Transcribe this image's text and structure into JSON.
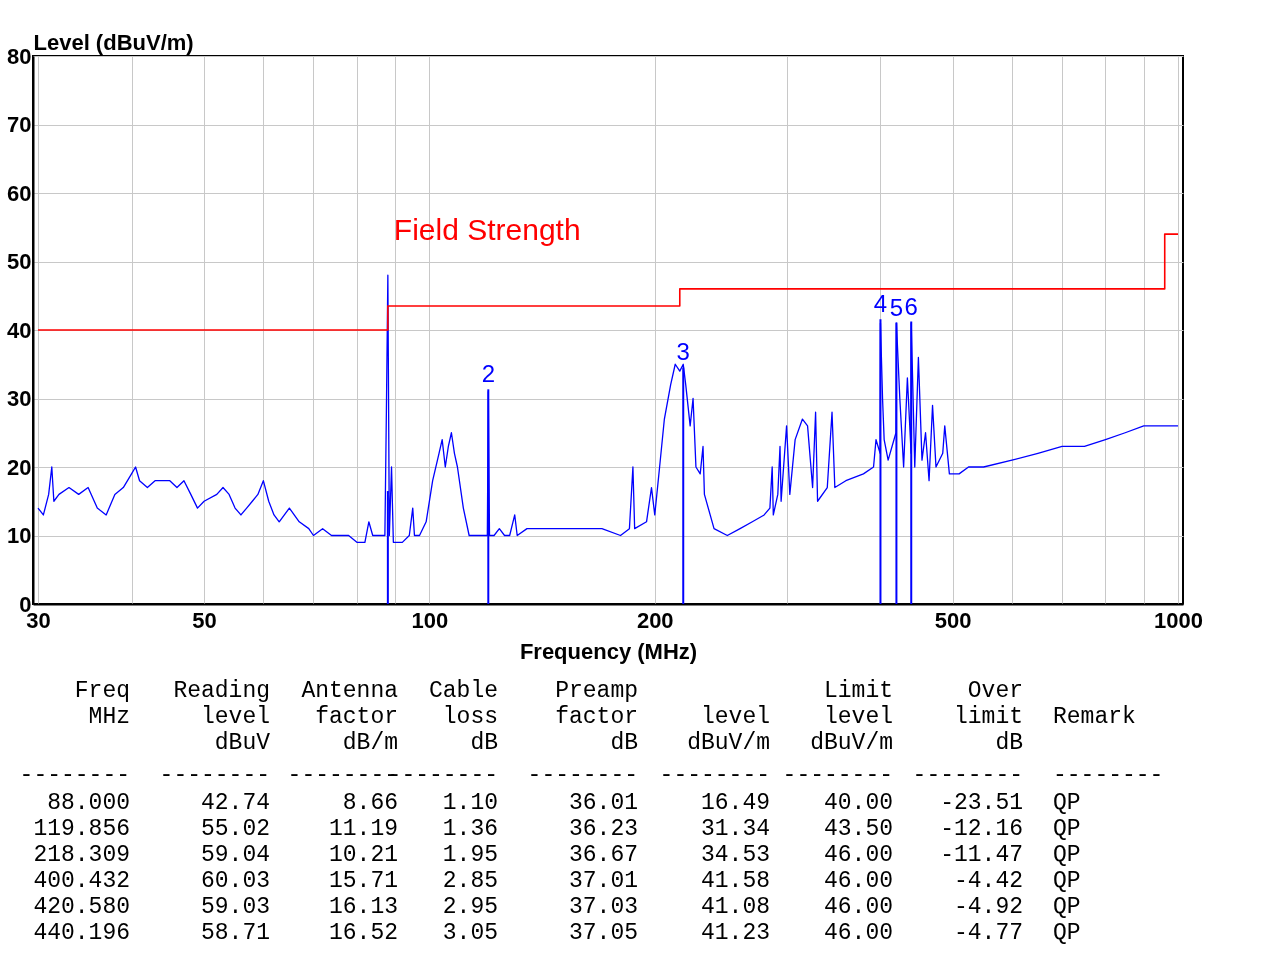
{
  "chart_data": {
    "type": "line",
    "xlabel": "Frequency (MHz)",
    "ylabel": "Level (dBuV/m)",
    "log": "x",
    "grid": true,
    "legend": false,
    "xlim": [
      30,
      1000
    ],
    "xticks": [
      30,
      {
        "value": 40,
        "label": null
      },
      50,
      {
        "value": 60,
        "label": null
      },
      {
        "value": 70,
        "label": null
      },
      {
        "value": 80,
        "label": null
      },
      {
        "value": 90,
        "label": null
      },
      100,
      200,
      {
        "value": 300,
        "label": null
      },
      {
        "value": 400,
        "label": null
      },
      500,
      {
        "value": 600,
        "label": null
      },
      {
        "value": 700,
        "label": null
      },
      {
        "value": 800,
        "label": null
      },
      {
        "value": 900,
        "label": null
      },
      1000
    ],
    "ylim": [
      0,
      80
    ],
    "yticks": [
      0,
      10,
      20,
      30,
      40,
      50,
      60,
      70,
      80
    ],
    "series": [
      {
        "type": "line",
        "color": "#0000ff",
        "x": [
          30,
          30.5,
          31,
          31.3,
          31.5,
          32,
          33,
          34,
          35,
          36,
          37,
          38,
          39,
          40,
          40.5,
          41,
          42,
          43,
          44,
          45,
          46,
          47,
          48,
          49,
          50,
          52,
          53,
          54,
          55,
          56,
          57,
          58,
          59,
          60,
          61,
          62,
          63,
          65,
          67,
          69,
          70,
          72,
          74,
          76,
          78,
          80,
          82,
          83,
          84,
          86,
          87.2,
          87.6,
          88,
          88.4,
          89,
          89.5,
          92,
          94,
          95,
          95.5,
          97,
          99,
          101,
          103,
          104,
          105,
          106,
          107,
          108,
          109,
          111,
          113,
          115,
          117,
          119.5,
          119.856,
          120.3,
          122,
          124,
          126,
          128,
          130,
          131,
          135,
          140,
          150,
          160,
          170,
          180,
          185,
          187,
          188,
          195,
          198,
          200,
          203,
          206,
          210,
          213,
          216,
          218.309,
          220,
          223,
          225,
          227,
          230,
          232,
          233,
          240,
          250,
          260,
          270,
          280,
          285,
          287,
          288,
          292,
          294,
          295,
          300,
          303,
          308,
          315,
          320,
          325,
          328,
          330,
          340,
          345,
          348,
          360,
          380,
          392,
          395,
          400,
          400.432,
          403,
          405,
          410,
          420,
          420.58,
          425,
          430,
          435,
          440,
          440.196,
          445,
          450,
          455,
          460,
          465,
          470,
          475,
          485,
          488,
          495,
          500,
          510,
          525,
          550,
          600,
          650,
          700,
          750,
          800,
          850,
          900,
          950,
          1000
        ],
        "values": [
          14,
          13,
          16,
          20,
          15,
          16,
          17,
          16,
          17,
          14,
          13,
          16,
          17,
          19,
          20,
          18,
          17,
          18,
          18,
          18,
          17,
          18,
          16,
          14,
          15,
          16,
          17,
          16,
          14,
          13,
          14,
          15,
          16,
          18,
          15,
          13,
          12,
          14,
          12,
          11,
          10,
          11,
          10,
          10,
          10,
          9,
          9,
          12,
          10,
          10,
          10,
          28,
          48,
          10,
          20,
          9,
          9,
          10,
          14,
          10,
          10,
          12,
          18,
          22,
          24,
          20,
          23,
          25,
          22,
          20,
          14,
          10,
          10,
          10,
          10,
          31,
          10,
          10,
          11,
          10,
          10,
          13,
          10,
          11,
          11,
          11,
          11,
          11,
          10,
          11,
          20,
          11,
          12,
          17,
          13,
          20,
          27,
          32,
          35,
          34,
          35,
          32,
          26,
          30,
          20,
          19,
          23,
          16,
          11,
          10,
          11,
          12,
          13,
          14,
          20,
          13,
          16,
          23,
          15,
          26,
          16,
          24,
          27,
          26,
          17,
          28,
          15,
          17,
          28,
          17,
          18,
          19,
          20,
          24,
          22,
          41,
          30,
          24,
          21,
          25,
          41,
          30,
          20,
          33,
          22,
          41,
          20,
          36,
          21,
          25,
          18,
          29,
          20,
          22,
          26,
          19,
          19,
          19,
          20,
          20,
          21,
          22,
          23,
          23,
          24,
          25,
          26,
          26,
          26
        ]
      },
      {
        "type": "step",
        "name": "Field Strength",
        "color": "#ff0000",
        "x": [
          30,
          88,
          216,
          960,
          1000
        ],
        "values": [
          40,
          43.5,
          46,
          54,
          54
        ]
      },
      {
        "type": "bar",
        "color": "#0000ff",
        "x": [
          88.0,
          119.856,
          218.309,
          400.432,
          420.58,
          440.196
        ],
        "values": [
          16.49,
          31.34,
          34.53,
          41.58,
          41.08,
          41.23
        ]
      }
    ],
    "annotations": [
      {
        "text": "2",
        "x": 119.856,
        "y": 31.34
      },
      {
        "text": "3",
        "x": 218.309,
        "y": 34.53
      },
      {
        "text": "4",
        "x": 400.432,
        "y": 41.58
      },
      {
        "text": "5",
        "x": 420.58,
        "y": 41.08
      },
      {
        "text": "6",
        "x": 440.196,
        "y": 41.23
      },
      "Freq\n\nMHz",
      "Reading\nlevel\ndBuV",
      "Antenna\nfactor\ndB/m",
      "Cable\nloss\ndB",
      "Preamp\nfactor\ndB",
      "\nlevel\ndBuV/m",
      "Limit\nlevel\ndBuV/m",
      "Over\nlimit\ndB",
      "\nRemark",
      "--------",
      "--------",
      "--------",
      "--------",
      "--------",
      "--------",
      "--------",
      "--------",
      "--------",
      "88.000",
      "42.74",
      "8.66",
      "1.10",
      "36.01",
      "16.49",
      "40.00",
      "-23.51",
      "QP",
      "119.856",
      "55.02",
      "11.19",
      "1.36",
      "36.23",
      "31.34",
      "43.50",
      "-12.16",
      "QP",
      "218.309",
      "59.04",
      "10.21",
      "1.95",
      "36.67",
      "34.53",
      "46.00",
      "-11.47",
      "QP",
      "400.432",
      "60.03",
      "15.71",
      "2.85",
      "37.01",
      "41.58",
      "46.00",
      "-4.42",
      "QP",
      "420.580",
      "59.03",
      "16.13",
      "2.95",
      "37.03",
      "41.08",
      "46.00",
      "-4.92",
      "QP",
      "440.196",
      "58.71",
      "16.52",
      "3.05",
      "37.05",
      "41.23",
      "46.00",
      "-4.77",
      "QP"
    ]
  }
}
